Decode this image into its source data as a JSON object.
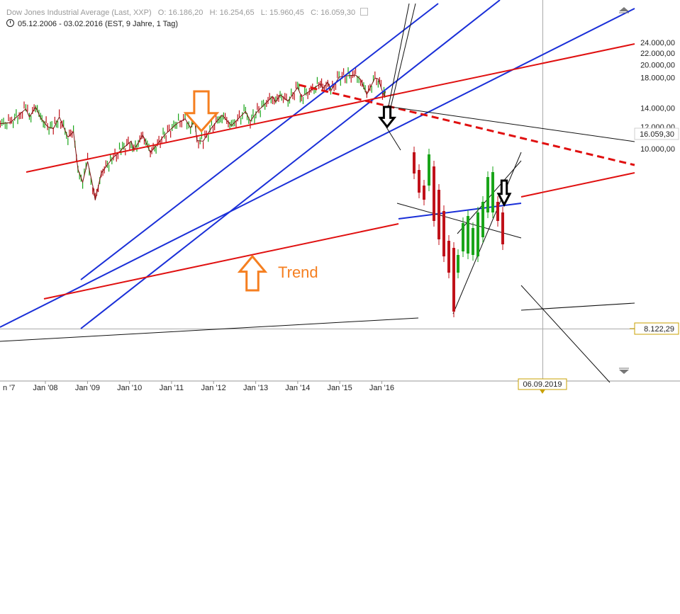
{
  "header": {
    "title": "Dow Jones Industrial Average (Last, XXP)",
    "open": "O: 16.186,20",
    "high": "H: 16.254,65",
    "low": "L: 15.960,45",
    "close": "C: 16.059,30",
    "range": "05.12.2006 - 03.02.2016 (EST, 9 Jahre, 1 Tag)"
  },
  "annotation": {
    "trend_label": "Trend"
  },
  "badges": {
    "last_price": "16.059,30",
    "low_price": "8.122,29",
    "date_marker": "06.09.2019",
    "x_start_fragment": "n '7"
  },
  "colors": {
    "up_candle": "#1aa51a",
    "down_candle": "#c0121a",
    "blue_line": "#1a2fd8",
    "red_line": "#e01010",
    "arrow_orange": "#f57f20",
    "badge_border": "#c8a000"
  },
  "chart_data": {
    "type": "line",
    "title": "Dow Jones Industrial Average (Last, XXP)",
    "xlabel": "",
    "ylabel": "",
    "grid": false,
    "y_scale": "log",
    "x_range": [
      "2006-12-05",
      "2019-09-06"
    ],
    "ylim": [
      7000,
      25000
    ],
    "y_ticks": [
      {
        "value": 24000,
        "label": "24.000,00"
      },
      {
        "value": 22000,
        "label": "22.000,00"
      },
      {
        "value": 20000,
        "label": "20.000,00"
      },
      {
        "value": 18000,
        "label": "18.000,00"
      },
      {
        "value": 14000,
        "label": "14.000,00"
      },
      {
        "value": 12000,
        "label": "12.000,00"
      },
      {
        "value": 10000,
        "label": "10.000,00"
      }
    ],
    "x_ticks": [
      {
        "date": "2008-01-01",
        "label": "Jan '08"
      },
      {
        "date": "2009-01-01",
        "label": "Jan '09"
      },
      {
        "date": "2010-01-01",
        "label": "Jan '10"
      },
      {
        "date": "2011-01-01",
        "label": "Jan '11"
      },
      {
        "date": "2012-01-01",
        "label": "Jan '12"
      },
      {
        "date": "2013-01-01",
        "label": "Jan '13"
      },
      {
        "date": "2014-01-01",
        "label": "Jan '14"
      },
      {
        "date": "2015-01-01",
        "label": "Jan '15"
      },
      {
        "date": "2016-01-01",
        "label": "Jan '16"
      }
    ],
    "series": [
      {
        "key": "price",
        "points": [
          [
            "2006-12-05",
            12300
          ],
          [
            "2007-03-01",
            12400
          ],
          [
            "2007-06-01",
            13400
          ],
          [
            "2007-07-15",
            13900
          ],
          [
            "2007-08-15",
            13000
          ],
          [
            "2007-10-09",
            14100
          ],
          [
            "2007-11-20",
            12900
          ],
          [
            "2008-01-20",
            12000
          ],
          [
            "2008-03-10",
            11800
          ],
          [
            "2008-05-01",
            13000
          ],
          [
            "2008-07-15",
            11000
          ],
          [
            "2008-09-01",
            11500
          ],
          [
            "2008-10-10",
            8450
          ],
          [
            "2008-11-20",
            7600
          ],
          [
            "2009-01-02",
            9000
          ],
          [
            "2009-02-15",
            7400
          ],
          [
            "2009-03-09",
            6550
          ],
          [
            "2009-05-01",
            8200
          ],
          [
            "2009-08-01",
            9200
          ],
          [
            "2009-11-01",
            10000
          ],
          [
            "2010-01-15",
            10650
          ],
          [
            "2010-02-08",
            9900
          ],
          [
            "2010-04-26",
            11200
          ],
          [
            "2010-07-01",
            9700
          ],
          [
            "2010-09-01",
            10400
          ],
          [
            "2010-11-01",
            11200
          ],
          [
            "2011-02-15",
            12300
          ],
          [
            "2011-04-29",
            12800
          ],
          [
            "2011-06-15",
            11900
          ],
          [
            "2011-07-20",
            12700
          ],
          [
            "2011-08-10",
            10700
          ],
          [
            "2011-10-03",
            10650
          ],
          [
            "2011-12-15",
            11900
          ],
          [
            "2012-03-15",
            13200
          ],
          [
            "2012-06-04",
            12100
          ],
          [
            "2012-10-05",
            13600
          ],
          [
            "2012-11-15",
            12550
          ],
          [
            "2013-01-15",
            13600
          ],
          [
            "2013-05-28",
            15400
          ],
          [
            "2013-06-24",
            14700
          ],
          [
            "2013-08-01",
            15600
          ],
          [
            "2013-10-09",
            14800
          ],
          [
            "2013-12-31",
            16580
          ],
          [
            "2014-02-03",
            15350
          ],
          [
            "2014-07-17",
            17100
          ],
          [
            "2014-08-07",
            16370
          ],
          [
            "2014-09-19",
            17350
          ],
          [
            "2014-10-15",
            16100
          ],
          [
            "2014-12-26",
            18050
          ],
          [
            "2015-03-02",
            18250
          ],
          [
            "2015-05-19",
            18350
          ],
          [
            "2015-07-01",
            17700
          ],
          [
            "2015-08-24",
            15650
          ],
          [
            "2015-11-03",
            17900
          ],
          [
            "2015-12-01",
            17800
          ],
          [
            "2016-01-20",
            15450
          ],
          [
            "2016-02-03",
            16059.3
          ]
        ]
      }
    ]
  }
}
